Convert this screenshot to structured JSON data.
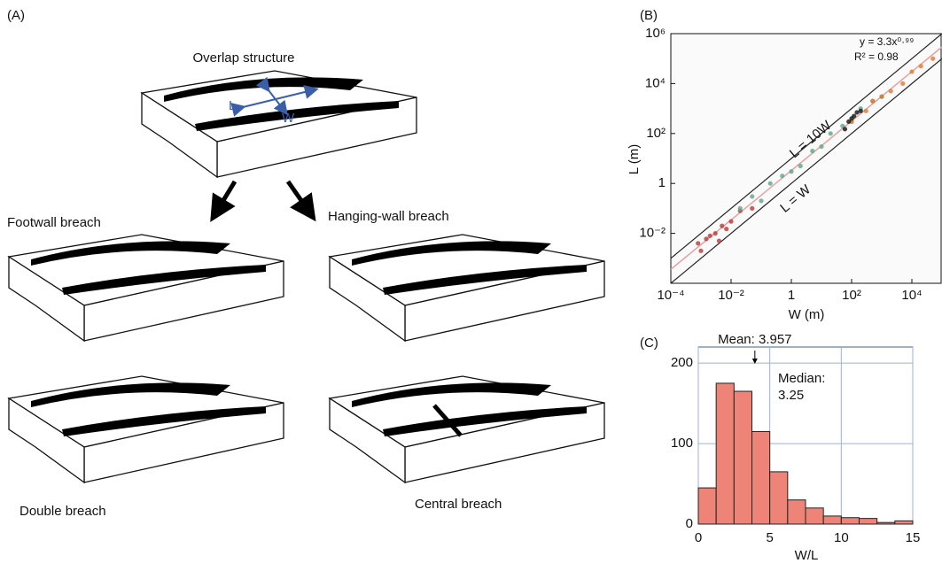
{
  "panel_a": {
    "label": "(A)",
    "overlap_title": "Overlap structure",
    "length_symbol": "L",
    "width_symbol": "W",
    "footwall": "Footwall breach",
    "hanging_wall": "Hanging-wall breach",
    "double": "Double breach",
    "central": "Central breach"
  },
  "chart_data": [
    {
      "type": "scatter",
      "panel_label": "(B)",
      "x_label": "W (m)",
      "y_label": "L (m)",
      "log_scale": true,
      "xlim": [
        0.0001,
        100000
      ],
      "ylim": [
        0.0001,
        1000000
      ],
      "xticks": [
        {
          "value": 0.0001,
          "label": "10⁻⁴"
        },
        {
          "value": 0.01,
          "label": "10⁻²"
        },
        1,
        {
          "value": 100,
          "label": "10²"
        },
        {
          "value": 10000,
          "label": "10⁴"
        }
      ],
      "yticks": [
        {
          "value": 0.01,
          "label": "10⁻²"
        },
        1,
        {
          "value": 100,
          "label": "10²"
        },
        {
          "value": 10000,
          "label": "10⁴"
        },
        {
          "value": 1000000,
          "label": "10⁶"
        }
      ],
      "fit": {
        "label": "y = 3.3x⁰·⁹⁹",
        "a": 3.3,
        "b": 0.99,
        "color": "#e8a0a0"
      },
      "r2_label": "R² = 0.98",
      "reference_lines": [
        {
          "label": "L = 10W",
          "factor": 10
        },
        {
          "label": "L = W",
          "factor": 1
        }
      ],
      "series": [
        {
          "color": "#b83a3a",
          "x": [
            0.0008,
            0.001,
            0.0015,
            0.002,
            0.003,
            0.004,
            0.005,
            0.007,
            0.01,
            0.02,
            0.05
          ],
          "values": [
            0.004,
            0.002,
            0.006,
            0.008,
            0.01,
            0.005,
            0.02,
            0.015,
            0.03,
            0.08,
            0.1
          ]
        },
        {
          "color": "#5aa88c",
          "x": [
            0.02,
            0.05,
            0.1,
            0.2,
            0.5,
            1,
            2,
            5,
            10,
            20,
            50,
            100,
            200,
            500,
            1000
          ],
          "values": [
            0.1,
            0.3,
            0.2,
            1,
            2,
            3,
            5,
            20,
            30,
            100,
            200,
            300,
            1000,
            2000,
            3000
          ]
        },
        {
          "color": "#e07a2e",
          "x": [
            100,
            300,
            500,
            1000,
            2000,
            5000,
            10000,
            20000,
            50000
          ],
          "values": [
            300,
            800,
            2000,
            3000,
            5000,
            10000,
            30000,
            50000,
            100000
          ]
        },
        {
          "color": "#111111",
          "x": [
            60,
            80,
            100,
            120,
            150,
            200
          ],
          "values": [
            150,
            300,
            400,
            500,
            700,
            800
          ]
        }
      ]
    },
    {
      "type": "histogram",
      "panel_label": "(C)",
      "x_label": "W/L",
      "color": "#ee8377",
      "bins": [
        0,
        1.25,
        2.5,
        3.75,
        5,
        6.25,
        7.5,
        8.75,
        10,
        11.25,
        12.5,
        13.75,
        15
      ],
      "values": [
        45,
        175,
        165,
        115,
        65,
        30,
        20,
        10,
        8,
        7,
        2,
        4
      ],
      "xlim": [
        0,
        15
      ],
      "ylim": [
        0,
        220
      ],
      "xticks": [
        0,
        5,
        10,
        15
      ],
      "yticks": [
        0,
        100,
        200
      ],
      "grid": true,
      "mean": 3.957,
      "mean_label": "Mean: 3.957",
      "median_label": [
        "Median:",
        "3.25"
      ]
    }
  ]
}
